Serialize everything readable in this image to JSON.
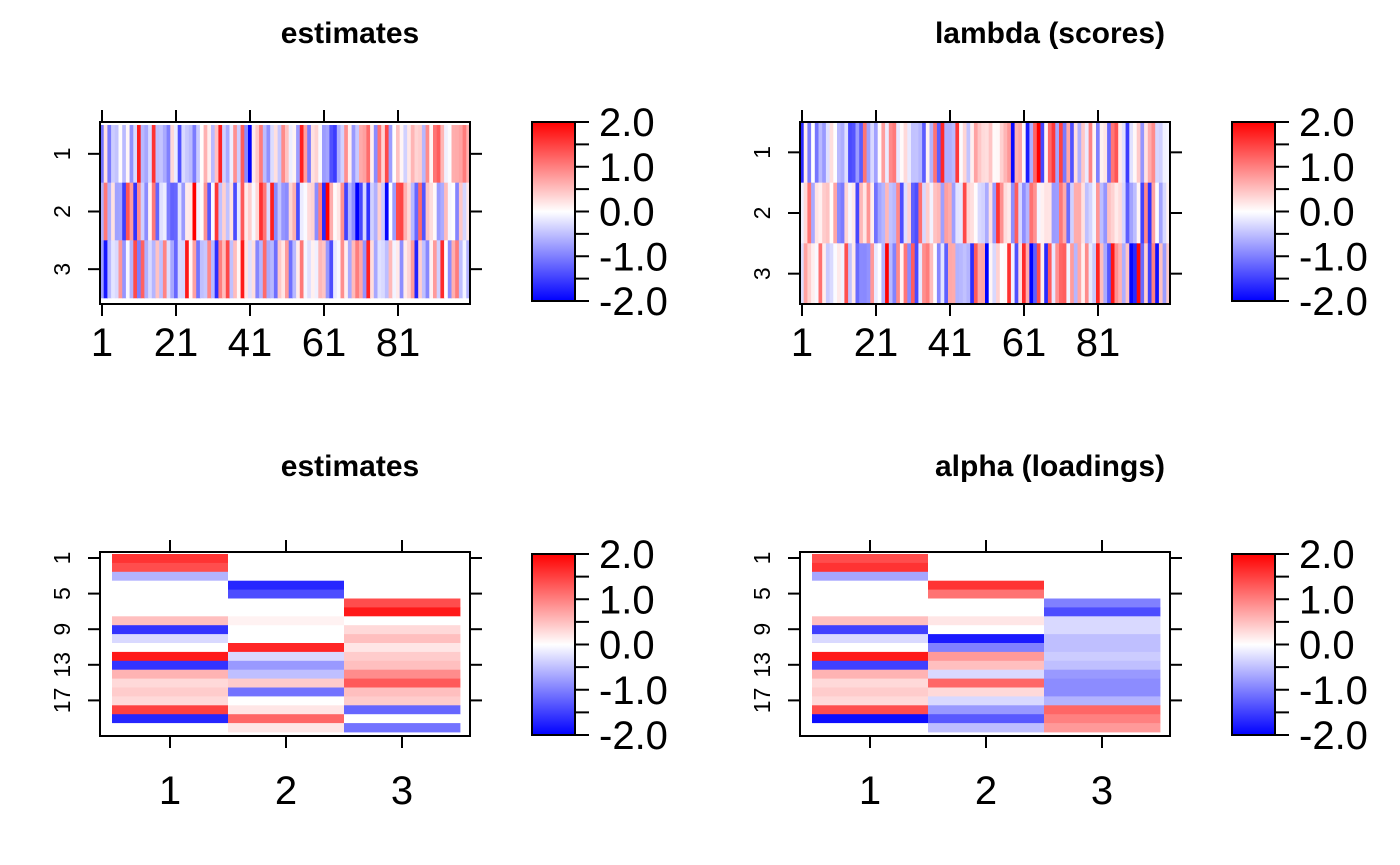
{
  "colors": {
    "low": "#0000ff",
    "mid": "#ffffff",
    "high": "#ff0000",
    "axis": "#000000"
  },
  "colorbar_ticks": [
    "2.0",
    "1.0",
    "0.0",
    "-1.0",
    "-2.0"
  ],
  "colorbar_range": [
    -2,
    2
  ],
  "chart_data": [
    {
      "type": "heatmap",
      "title": "estimates",
      "orientation": "rows-horizontal",
      "x_tick_labels": [
        "1",
        "21",
        "41",
        "61",
        "81"
      ],
      "x_tick_values": [
        1,
        21,
        41,
        61,
        81
      ],
      "y_tick_labels": [
        "1",
        "2",
        "3"
      ],
      "n_rows": 3,
      "n_cols": 100,
      "row_profiles": [
        {
          "seed": 11,
          "scale": 1.1
        },
        {
          "seed": 23,
          "scale": 1.2
        },
        {
          "seed": 37,
          "scale": 1.0
        }
      ],
      "colorbar": {
        "min": -2,
        "max": 2
      }
    },
    {
      "type": "heatmap",
      "title": "lambda (scores)",
      "orientation": "rows-horizontal",
      "x_tick_labels": [
        "1",
        "21",
        "41",
        "61",
        "81"
      ],
      "x_tick_values": [
        1,
        21,
        41,
        61,
        81
      ],
      "y_tick_labels": [
        "1",
        "2",
        "3"
      ],
      "n_rows": 3,
      "n_cols": 100,
      "row_profiles": [
        {
          "seed": 53,
          "scale": 1.0
        },
        {
          "seed": 71,
          "scale": 0.9
        },
        {
          "seed": 89,
          "scale": 1.4
        }
      ],
      "colorbar": {
        "min": -2,
        "max": 2
      }
    },
    {
      "type": "heatmap",
      "title": "estimates",
      "orientation": "columns-vertical",
      "x_tick_labels": [
        "1",
        "2",
        "3"
      ],
      "y_tick_labels": [
        "1",
        "5",
        "9",
        "13",
        "17"
      ],
      "y_tick_values": [
        1,
        5,
        9,
        13,
        17
      ],
      "n_rows": 20,
      "columns": [
        {
          "label": "1",
          "values": [
            1.6,
            1.4,
            -0.6,
            0,
            0,
            0,
            0,
            0.5,
            -1.6,
            -0.3,
            0,
            1.8,
            -1.6,
            0.6,
            0.3,
            0.4,
            0.3,
            1.5,
            -1.7,
            0
          ]
        },
        {
          "label": "2",
          "values": [
            0,
            0,
            0,
            -1.7,
            -1.4,
            0,
            0,
            0.1,
            0,
            0,
            1.7,
            -0.3,
            -0.8,
            -0.5,
            0.4,
            -1.1,
            0,
            0.2,
            1.2,
            0.2
          ]
        },
        {
          "label": "3",
          "values": [
            0,
            0,
            0,
            0,
            0,
            1.4,
            1.8,
            0,
            0.3,
            0.5,
            0.2,
            0.4,
            0.5,
            0.9,
            1.3,
            0.5,
            0.4,
            -1.2,
            0,
            -1.1
          ]
        }
      ],
      "colorbar": {
        "min": -2,
        "max": 2
      }
    },
    {
      "type": "heatmap",
      "title": "alpha (loadings)",
      "orientation": "columns-vertical",
      "x_tick_labels": [
        "1",
        "2",
        "3"
      ],
      "y_tick_labels": [
        "1",
        "5",
        "9",
        "13",
        "17"
      ],
      "y_tick_values": [
        1,
        5,
        9,
        13,
        17
      ],
      "n_rows": 20,
      "columns": [
        {
          "label": "1",
          "values": [
            1.4,
            1.6,
            -0.7,
            0,
            0,
            0,
            0,
            0.5,
            -1.5,
            -0.3,
            0,
            1.8,
            -1.5,
            0.6,
            0.3,
            0.4,
            0.3,
            1.4,
            -1.9,
            0
          ]
        },
        {
          "label": "2",
          "values": [
            0,
            0,
            0,
            1.6,
            1.1,
            0,
            0,
            0.2,
            0,
            -1.8,
            -1.0,
            0.8,
            0.5,
            -0.3,
            1.2,
            0.3,
            -0.3,
            -0.8,
            -1.3,
            -0.5
          ]
        },
        {
          "label": "3",
          "values": [
            0,
            0,
            0,
            0,
            0,
            -1.0,
            -1.4,
            -0.3,
            -0.3,
            -0.5,
            -0.5,
            -0.4,
            -0.5,
            -0.8,
            -0.9,
            -0.9,
            -0.6,
            1.2,
            1.0,
            0.8
          ]
        }
      ],
      "colorbar": {
        "min": -2,
        "max": 2
      }
    }
  ]
}
